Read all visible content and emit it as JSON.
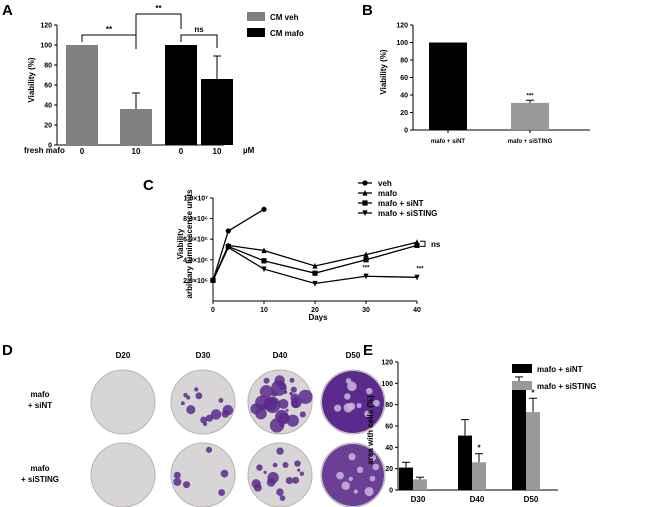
{
  "panels": {
    "A": "A",
    "B": "B",
    "C": "C",
    "D": "D",
    "E": "E"
  },
  "colors": {
    "veh": "#808080",
    "mafo": "#000000",
    "siNT": "#000000",
    "siSTING": "#999999",
    "crystal_violet": "#5a2a8c"
  },
  "chart_data": [
    {
      "id": "A",
      "type": "bar",
      "ylabel": "Viability (%)",
      "ylim": [
        0,
        120
      ],
      "yticks": [
        0,
        20,
        40,
        60,
        80,
        100,
        120
      ],
      "x_row_label": "fresh mafo",
      "x_unit": "µM",
      "categories": [
        "0",
        "10",
        "0",
        "10"
      ],
      "bar_series": [
        "CM veh",
        "CM veh",
        "CM mafo",
        "CM mafo"
      ],
      "values": [
        100,
        36,
        100,
        66
      ],
      "errors": [
        0,
        16,
        0,
        23
      ],
      "legend": [
        "CM veh",
        "CM mafo"
      ],
      "legend_position": "top-right",
      "annotations": [
        "**",
        "**",
        "ns"
      ]
    },
    {
      "id": "B",
      "type": "bar",
      "ylabel": "Viability (%)",
      "ylim": [
        0,
        120
      ],
      "yticks": [
        0,
        20,
        40,
        60,
        80,
        100,
        120
      ],
      "categories": [
        "mafo + siNT",
        "mafo + siSTING"
      ],
      "values": [
        100,
        31
      ],
      "errors": [
        0,
        3
      ],
      "annotations": [
        "***"
      ]
    },
    {
      "id": "C",
      "type": "line",
      "xlabel": "Days",
      "ylabel": "Viability",
      "ylabel2": "arbitrary luminescence units",
      "xlim": [
        0,
        40
      ],
      "xticks": [
        0,
        10,
        20,
        30,
        40
      ],
      "ylim": [
        0,
        10000000
      ],
      "yticks": [
        2000000,
        4000000,
        6000000,
        8000000,
        10000000
      ],
      "ytick_labels": [
        "2.0×10⁶",
        "4.0×10⁶",
        "6.0×10⁶",
        "8.0×10⁶",
        "1.0×10⁷"
      ],
      "legend_position": "top-right",
      "series": [
        {
          "name": "veh",
          "marker": "circle",
          "x": [
            0,
            3,
            10
          ],
          "y": [
            2000000,
            6800000,
            8900000
          ]
        },
        {
          "name": "mafo",
          "marker": "triangle-up",
          "x": [
            0,
            3,
            10,
            20,
            30,
            40
          ],
          "y": [
            2000000,
            5400000,
            4900000,
            3400000,
            4500000,
            5700000
          ]
        },
        {
          "name": "mafo + siNT",
          "marker": "square",
          "x": [
            0,
            3,
            10,
            20,
            30,
            40
          ],
          "y": [
            2000000,
            5300000,
            3900000,
            2700000,
            4000000,
            5400000
          ]
        },
        {
          "name": "mafo + siSTING",
          "marker": "triangle-down",
          "x": [
            0,
            3,
            10,
            20,
            30,
            40
          ],
          "y": [
            2000000,
            5200000,
            3100000,
            1700000,
            2400000,
            2300000
          ]
        }
      ],
      "annotations": [
        "ns",
        "***",
        "***"
      ]
    },
    {
      "id": "E",
      "type": "bar",
      "ylabel": "area with cells (%)",
      "ylim": [
        0,
        120
      ],
      "yticks": [
        0,
        20,
        40,
        60,
        80,
        100,
        120
      ],
      "categories": [
        "D30",
        "D40",
        "D50"
      ],
      "legend_position": "top-right",
      "series": [
        {
          "name": "mafo + siNT",
          "values": [
            21,
            51,
            100
          ],
          "errors": [
            5,
            15,
            6
          ]
        },
        {
          "name": "mafo + siSTING",
          "values": [
            10,
            26,
            73
          ],
          "errors": [
            2,
            8,
            13
          ]
        }
      ],
      "annotations": [
        "*",
        "*"
      ]
    }
  ],
  "panel_D": {
    "columns": [
      "D20",
      "D30",
      "D40",
      "D50"
    ],
    "rows": [
      {
        "label_line1": "mafo",
        "label_line2": "+ siNT"
      },
      {
        "label_line1": "mafo",
        "label_line2": "+ siSTING"
      }
    ],
    "stain_coverage": [
      [
        0.0,
        0.21,
        0.51,
        1.0
      ],
      [
        0.0,
        0.1,
        0.26,
        0.73
      ]
    ]
  }
}
